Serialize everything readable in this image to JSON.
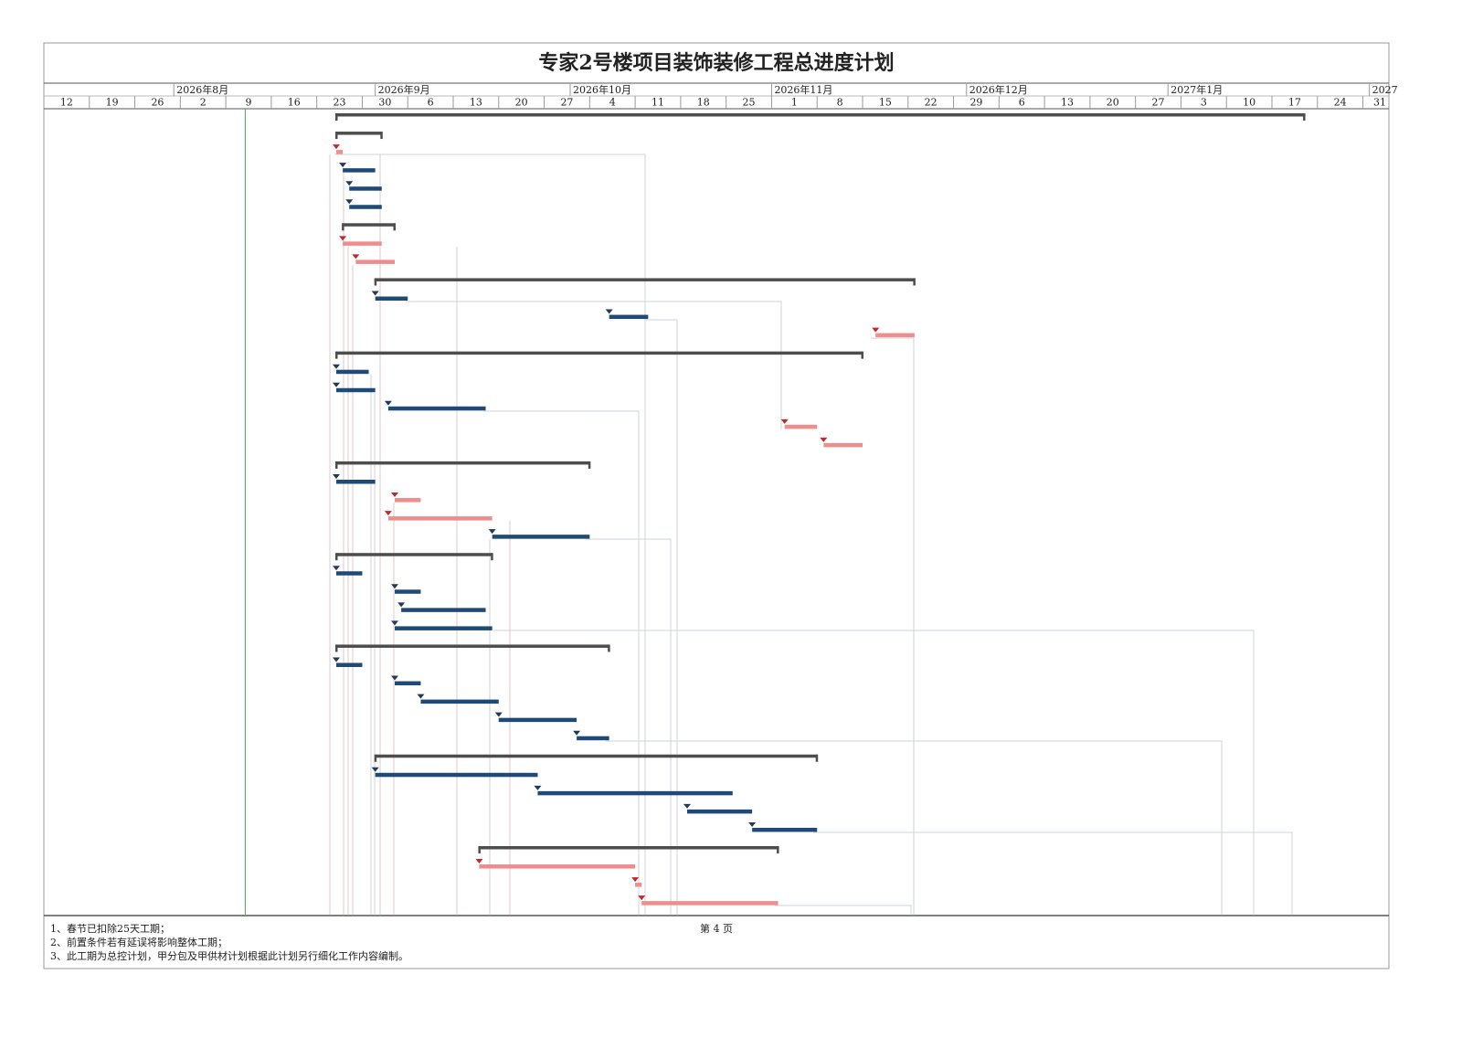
{
  "chart_data": {
    "type": "gantt",
    "title": "专家2号楼项目装饰装修工程总进度计划",
    "xlim": [
      "2026-07-12",
      "2027-02-04"
    ],
    "months": [
      {
        "value": "2026-08-01",
        "label": "2026年8月"
      },
      {
        "value": "2026-09-01",
        "label": "2026年9月"
      },
      {
        "value": "2026-10-01",
        "label": "2026年10月"
      },
      {
        "value": "2026-11-01",
        "label": "2026年11月"
      },
      {
        "value": "2026-12-01",
        "label": "2026年12月"
      },
      {
        "value": "2027-01-01",
        "label": "2027年1月"
      },
      {
        "value": "2027-02-01",
        "label": "2027"
      }
    ],
    "xticks": [
      {
        "value": "2026-07-12",
        "label": "12"
      },
      {
        "value": "2026-07-19",
        "label": "19"
      },
      {
        "value": "2026-07-26",
        "label": "26"
      },
      {
        "value": "2026-08-02",
        "label": "2"
      },
      {
        "value": "2026-08-09",
        "label": "9"
      },
      {
        "value": "2026-08-16",
        "label": "16"
      },
      {
        "value": "2026-08-23",
        "label": "23"
      },
      {
        "value": "2026-08-30",
        "label": "30"
      },
      {
        "value": "2026-09-06",
        "label": "6"
      },
      {
        "value": "2026-09-13",
        "label": "13"
      },
      {
        "value": "2026-09-20",
        "label": "20"
      },
      {
        "value": "2026-09-27",
        "label": "27"
      },
      {
        "value": "2026-10-04",
        "label": "4"
      },
      {
        "value": "2026-10-11",
        "label": "11"
      },
      {
        "value": "2026-10-18",
        "label": "18"
      },
      {
        "value": "2026-10-25",
        "label": "25"
      },
      {
        "value": "2026-11-01",
        "label": "1"
      },
      {
        "value": "2026-11-08",
        "label": "8"
      },
      {
        "value": "2026-11-15",
        "label": "15"
      },
      {
        "value": "2026-11-22",
        "label": "22"
      },
      {
        "value": "2026-11-29",
        "label": "29"
      },
      {
        "value": "2026-12-06",
        "label": "6"
      },
      {
        "value": "2026-12-13",
        "label": "13"
      },
      {
        "value": "2026-12-20",
        "label": "20"
      },
      {
        "value": "2026-12-27",
        "label": "27"
      },
      {
        "value": "2027-01-03",
        "label": "3"
      },
      {
        "value": "2027-01-10",
        "label": "10"
      },
      {
        "value": "2027-01-17",
        "label": "17"
      },
      {
        "value": "2027-01-24",
        "label": "24"
      },
      {
        "value": "2027-01-31",
        "label": "31"
      }
    ],
    "status_date": "2026-08-12",
    "colors": {
      "summary": "#4d4d4d",
      "critical": "#ef8c8c",
      "normal": "#1f4a78",
      "status": "#6aa56a"
    },
    "tasks": [
      {
        "kind": "summary",
        "start": "2026-08-26",
        "end": "2027-01-22"
      },
      {
        "kind": "summary",
        "start": "2026-08-26",
        "end": "2026-09-02"
      },
      {
        "kind": "critical",
        "start": "2026-08-26",
        "end": "2026-08-27"
      },
      {
        "kind": "normal",
        "start": "2026-08-27",
        "end": "2026-09-01"
      },
      {
        "kind": "normal",
        "start": "2026-08-28",
        "end": "2026-09-02"
      },
      {
        "kind": "normal",
        "start": "2026-08-28",
        "end": "2026-09-02"
      },
      {
        "kind": "summary",
        "start": "2026-08-27",
        "end": "2026-09-04"
      },
      {
        "kind": "critical",
        "start": "2026-08-27",
        "end": "2026-09-02"
      },
      {
        "kind": "critical",
        "start": "2026-08-29",
        "end": "2026-09-04"
      },
      {
        "kind": "summary",
        "start": "2026-09-01",
        "end": "2026-11-23"
      },
      {
        "kind": "normal",
        "start": "2026-09-01",
        "end": "2026-09-06"
      },
      {
        "kind": "normal",
        "start": "2026-10-07",
        "end": "2026-10-13"
      },
      {
        "kind": "critical",
        "start": "2026-11-17",
        "end": "2026-11-23"
      },
      {
        "kind": "summary",
        "start": "2026-08-26",
        "end": "2026-11-15"
      },
      {
        "kind": "normal",
        "start": "2026-08-26",
        "end": "2026-08-31"
      },
      {
        "kind": "normal",
        "start": "2026-08-26",
        "end": "2026-09-01"
      },
      {
        "kind": "normal",
        "start": "2026-09-03",
        "end": "2026-09-18"
      },
      {
        "kind": "critical",
        "start": "2026-11-03",
        "end": "2026-11-08"
      },
      {
        "kind": "critical",
        "start": "2026-11-09",
        "end": "2026-11-15"
      },
      {
        "kind": "summary",
        "start": "2026-08-26",
        "end": "2026-10-04"
      },
      {
        "kind": "normal",
        "start": "2026-08-26",
        "end": "2026-09-01"
      },
      {
        "kind": "critical",
        "start": "2026-09-04",
        "end": "2026-09-08"
      },
      {
        "kind": "critical",
        "start": "2026-09-03",
        "end": "2026-09-19"
      },
      {
        "kind": "normal",
        "start": "2026-09-19",
        "end": "2026-10-04"
      },
      {
        "kind": "summary",
        "start": "2026-08-26",
        "end": "2026-09-19"
      },
      {
        "kind": "normal",
        "start": "2026-08-26",
        "end": "2026-08-30"
      },
      {
        "kind": "normal",
        "start": "2026-09-04",
        "end": "2026-09-08"
      },
      {
        "kind": "normal",
        "start": "2026-09-05",
        "end": "2026-09-18"
      },
      {
        "kind": "normal",
        "start": "2026-09-04",
        "end": "2026-09-19"
      },
      {
        "kind": "summary",
        "start": "2026-08-26",
        "end": "2026-10-07"
      },
      {
        "kind": "normal",
        "start": "2026-08-26",
        "end": "2026-08-30"
      },
      {
        "kind": "normal",
        "start": "2026-09-04",
        "end": "2026-09-08"
      },
      {
        "kind": "normal",
        "start": "2026-09-08",
        "end": "2026-09-20"
      },
      {
        "kind": "normal",
        "start": "2026-09-20",
        "end": "2026-10-02"
      },
      {
        "kind": "normal",
        "start": "2026-10-02",
        "end": "2026-10-07"
      },
      {
        "kind": "summary",
        "start": "2026-09-01",
        "end": "2026-11-08"
      },
      {
        "kind": "normal",
        "start": "2026-09-01",
        "end": "2026-09-26"
      },
      {
        "kind": "normal",
        "start": "2026-09-26",
        "end": "2026-10-26"
      },
      {
        "kind": "normal",
        "start": "2026-10-19",
        "end": "2026-10-29"
      },
      {
        "kind": "normal",
        "start": "2026-10-29",
        "end": "2026-11-08"
      },
      {
        "kind": "summary",
        "start": "2026-09-17",
        "end": "2026-11-02"
      },
      {
        "kind": "critical",
        "start": "2026-09-17",
        "end": "2026-10-11"
      },
      {
        "kind": "critical",
        "start": "2026-10-11",
        "end": "2026-10-12"
      },
      {
        "kind": "critical",
        "start": "2026-10-12",
        "end": "2026-11-02"
      }
    ],
    "notes": [
      "1、春节已扣除25天工期；",
      "2、前置条件若有延误将影响整体工期；",
      "3、此工期为总控计划，甲分包及甲供材计划根据此计划另行细化工作内容编制。"
    ],
    "page_label": "第 4 页"
  }
}
